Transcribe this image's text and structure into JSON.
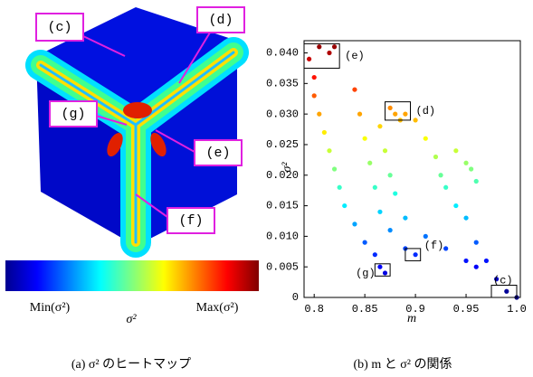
{
  "heatmap": {
    "labels": [
      "(c)",
      "(d)",
      "(g)",
      "(e)",
      "(f)"
    ],
    "colorbar": {
      "min_label": "Min(σ²)",
      "max_label": "Max(σ²)",
      "label": "σ²"
    },
    "caption": "(a) σ² のヒートマップ"
  },
  "chart_data": {
    "type": "scatter",
    "caption": "(b) m と σ² の関係",
    "x_label": "m",
    "y_label": "σ²",
    "colormap": "jet",
    "x": [
      0.805,
      0.815,
      0.82,
      0.795,
      0.8,
      0.8,
      0.805,
      0.81,
      0.815,
      0.82,
      0.825,
      0.83,
      0.84,
      0.85,
      0.86,
      0.865,
      0.87,
      0.84,
      0.845,
      0.85,
      0.855,
      0.86,
      0.865,
      0.875,
      0.89,
      0.9,
      0.865,
      0.87,
      0.875,
      0.88,
      0.89,
      0.91,
      0.93,
      0.95,
      0.96,
      0.875,
      0.88,
      0.885,
      0.89,
      0.9,
      0.91,
      0.92,
      0.925,
      0.93,
      0.94,
      0.95,
      0.96,
      0.97,
      0.98,
      0.99,
      1.0,
      0.94,
      0.95,
      0.955,
      0.96
    ],
    "values": [
      0.041,
      0.04,
      0.041,
      0.039,
      0.036,
      0.033,
      0.03,
      0.027,
      0.024,
      0.021,
      0.018,
      0.015,
      0.012,
      0.009,
      0.007,
      0.005,
      0.004,
      0.034,
      0.03,
      0.026,
      0.022,
      0.018,
      0.014,
      0.011,
      0.008,
      0.007,
      0.028,
      0.024,
      0.02,
      0.017,
      0.013,
      0.01,
      0.008,
      0.006,
      0.005,
      0.031,
      0.03,
      0.029,
      0.03,
      0.029,
      0.026,
      0.023,
      0.02,
      0.018,
      0.015,
      0.013,
      0.009,
      0.006,
      0.003,
      0.001,
      0.0,
      0.024,
      0.022,
      0.021,
      0.019
    ],
    "xlim": [
      0.79,
      1.0
    ],
    "ylim": [
      0,
      0.042
    ],
    "xticks": [
      0.8,
      0.85,
      0.9,
      0.95,
      {
        "value": 1,
        "label": "1.0"
      }
    ],
    "yticks": [
      0,
      {
        "value": 0.005,
        "label": "0.005"
      },
      {
        "value": 0.01,
        "label": "0.010"
      },
      {
        "value": 0.015,
        "label": "0.015"
      },
      {
        "value": 0.02,
        "label": "0.020"
      },
      {
        "value": 0.025,
        "label": "0.025"
      },
      {
        "value": 0.03,
        "label": "0.030"
      },
      {
        "value": 0.035,
        "label": "0.035"
      },
      {
        "value": 0.04,
        "label": "0.040"
      }
    ],
    "annotations": [
      {
        "label": "(e)",
        "xlim": [
          0.79,
          0.825
        ],
        "ylim": [
          0.0375,
          0.0415
        ]
      },
      {
        "label": "(d)",
        "xlim": [
          0.87,
          0.895
        ],
        "ylim": [
          0.029,
          0.032
        ]
      },
      {
        "label": "(f)",
        "xlim": [
          0.89,
          0.905
        ],
        "ylim": [
          0.006,
          0.008
        ]
      },
      {
        "label": "(g)",
        "xlim": [
          0.86,
          0.875
        ],
        "ylim": [
          0.0035,
          0.0055
        ]
      },
      {
        "label": "(c)",
        "xlim": [
          0.975,
          1.0
        ],
        "ylim": [
          0,
          0.002
        ]
      }
    ]
  }
}
